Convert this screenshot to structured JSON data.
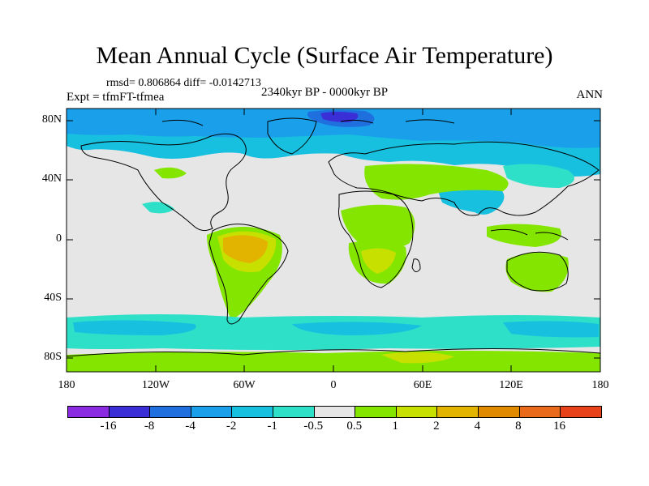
{
  "title": "Mean Annual Cycle (Surface Air Temperature)",
  "stats": "rmsd= 0.806864 diff= -0.0142713",
  "experiment": "Expt = tfmFT-tfmea",
  "period": "2340kyr BP - 0000kyr BP",
  "season": "ANN",
  "lat_labels": [
    "80N",
    "40N",
    "0",
    "40S",
    "80S"
  ],
  "lon_labels": [
    "180",
    "120W",
    "60W",
    "0",
    "60E",
    "120E",
    "180"
  ],
  "colorbar": {
    "labels": [
      "-16",
      "-8",
      "-4",
      "-2",
      "-1",
      "-0.5",
      "0.5",
      "1",
      "2",
      "4",
      "8",
      "16"
    ],
    "colors": [
      "#8a2be2",
      "#3a2fd6",
      "#1f6fdf",
      "#1aa0ea",
      "#18c0e0",
      "#2ee0c8",
      "#e6e6e6",
      "#84e600",
      "#c8e000",
      "#e2b400",
      "#e08a00",
      "#e86a1a",
      "#e8421a"
    ]
  },
  "colors": {
    "neutral": "#e6e6e6",
    "cool_light": "#2ee0c8",
    "cool_mid": "#18c0e0",
    "cool": "#1aa0ea",
    "cold": "#1f6fdf",
    "coldest": "#3a2fd6",
    "warm_light": "#84e600",
    "warm": "#c8e000",
    "warmer": "#e2b400",
    "coast": "#000000"
  }
}
